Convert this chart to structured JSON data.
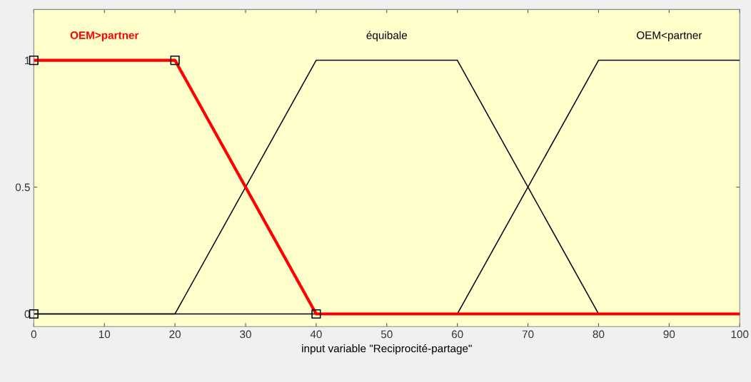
{
  "chart_data": {
    "type": "line",
    "xlabel": "input variable \"Reciprocité-partage\"",
    "xlim": [
      0,
      100
    ],
    "xticks": [
      0,
      10,
      20,
      30,
      40,
      50,
      60,
      70,
      80,
      90,
      100
    ],
    "ylim": [
      -0.05,
      1.2
    ],
    "yticks": [
      0,
      0.5,
      1
    ],
    "grid": false,
    "legend": false,
    "series": [
      {
        "name": "OEM>partner",
        "color": "#ff0000",
        "x": [
          0,
          20,
          40,
          100
        ],
        "values": [
          1,
          1,
          0,
          0
        ],
        "marker": "none"
      },
      {
        "name": "équibale",
        "color": "#000000",
        "x": [
          0,
          20,
          40,
          60,
          80,
          100
        ],
        "values": [
          0,
          0,
          1,
          1,
          0,
          0
        ],
        "marker": "none"
      },
      {
        "name": "OEM<partner",
        "color": "#000000",
        "x": [
          0,
          60,
          80,
          100
        ],
        "values": [
          0,
          0,
          1,
          1
        ],
        "marker": "none"
      },
      {
        "type": "scatter",
        "color": "#000000",
        "x": [
          0,
          0,
          20,
          40
        ],
        "values": [
          0,
          1,
          1,
          0
        ],
        "marker": "square"
      }
    ]
  }
}
